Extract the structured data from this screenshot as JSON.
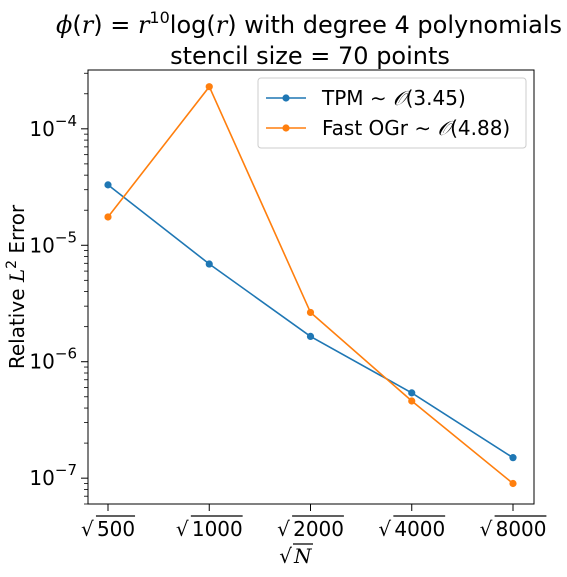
{
  "chart_data": {
    "type": "line",
    "title_parts": {
      "phi": "ϕ",
      "r_open": "(",
      "r": "r",
      "r_close_eq": ") = ",
      "r_base": "r",
      "exponent": "10",
      "log_text": "log(",
      "log_arg": "r",
      "log_close": ")",
      "suffix": " with degree 4 polynomials"
    },
    "subtitle": "stencil size = 70 points",
    "xlabel_sqrt": "√",
    "xlabel_var": "N",
    "ylabel_prefix": "Relative ",
    "ylabel_L": "L",
    "ylabel_sup": "2",
    "ylabel_suffix": " Error",
    "x_scale": "log",
    "y_scale": "log",
    "x": [
      500,
      1000,
      2000,
      4000,
      8000
    ],
    "x_tick_labels": [
      "500",
      "1000",
      "2000",
      "4000",
      "8000"
    ],
    "y_ticks": [
      {
        "value": 1e-07,
        "base": "10",
        "exp": "−7"
      },
      {
        "value": 1e-06,
        "base": "10",
        "exp": "−6"
      },
      {
        "value": 1e-05,
        "base": "10",
        "exp": "−5"
      },
      {
        "value": 0.0001,
        "base": "10",
        "exp": "−4"
      }
    ],
    "ylim": [
      6e-08,
      0.00032
    ],
    "grid": false,
    "legend_position": "top-right",
    "series": [
      {
        "name_prefix": "TPM ∼ ",
        "name_O": "𝒪",
        "name_suffix": "(3.45)",
        "color": "#1f77b4",
        "values": [
          3.3e-05,
          6.9e-06,
          1.65e-06,
          5.4e-07,
          1.5e-07
        ]
      },
      {
        "name_prefix": "Fast OGr ∼ ",
        "name_O": "𝒪",
        "name_suffix": "(4.88)",
        "color": "#ff7f0e",
        "values": [
          1.75e-05,
          0.00023,
          2.65e-06,
          4.6e-07,
          9e-08
        ]
      }
    ]
  }
}
